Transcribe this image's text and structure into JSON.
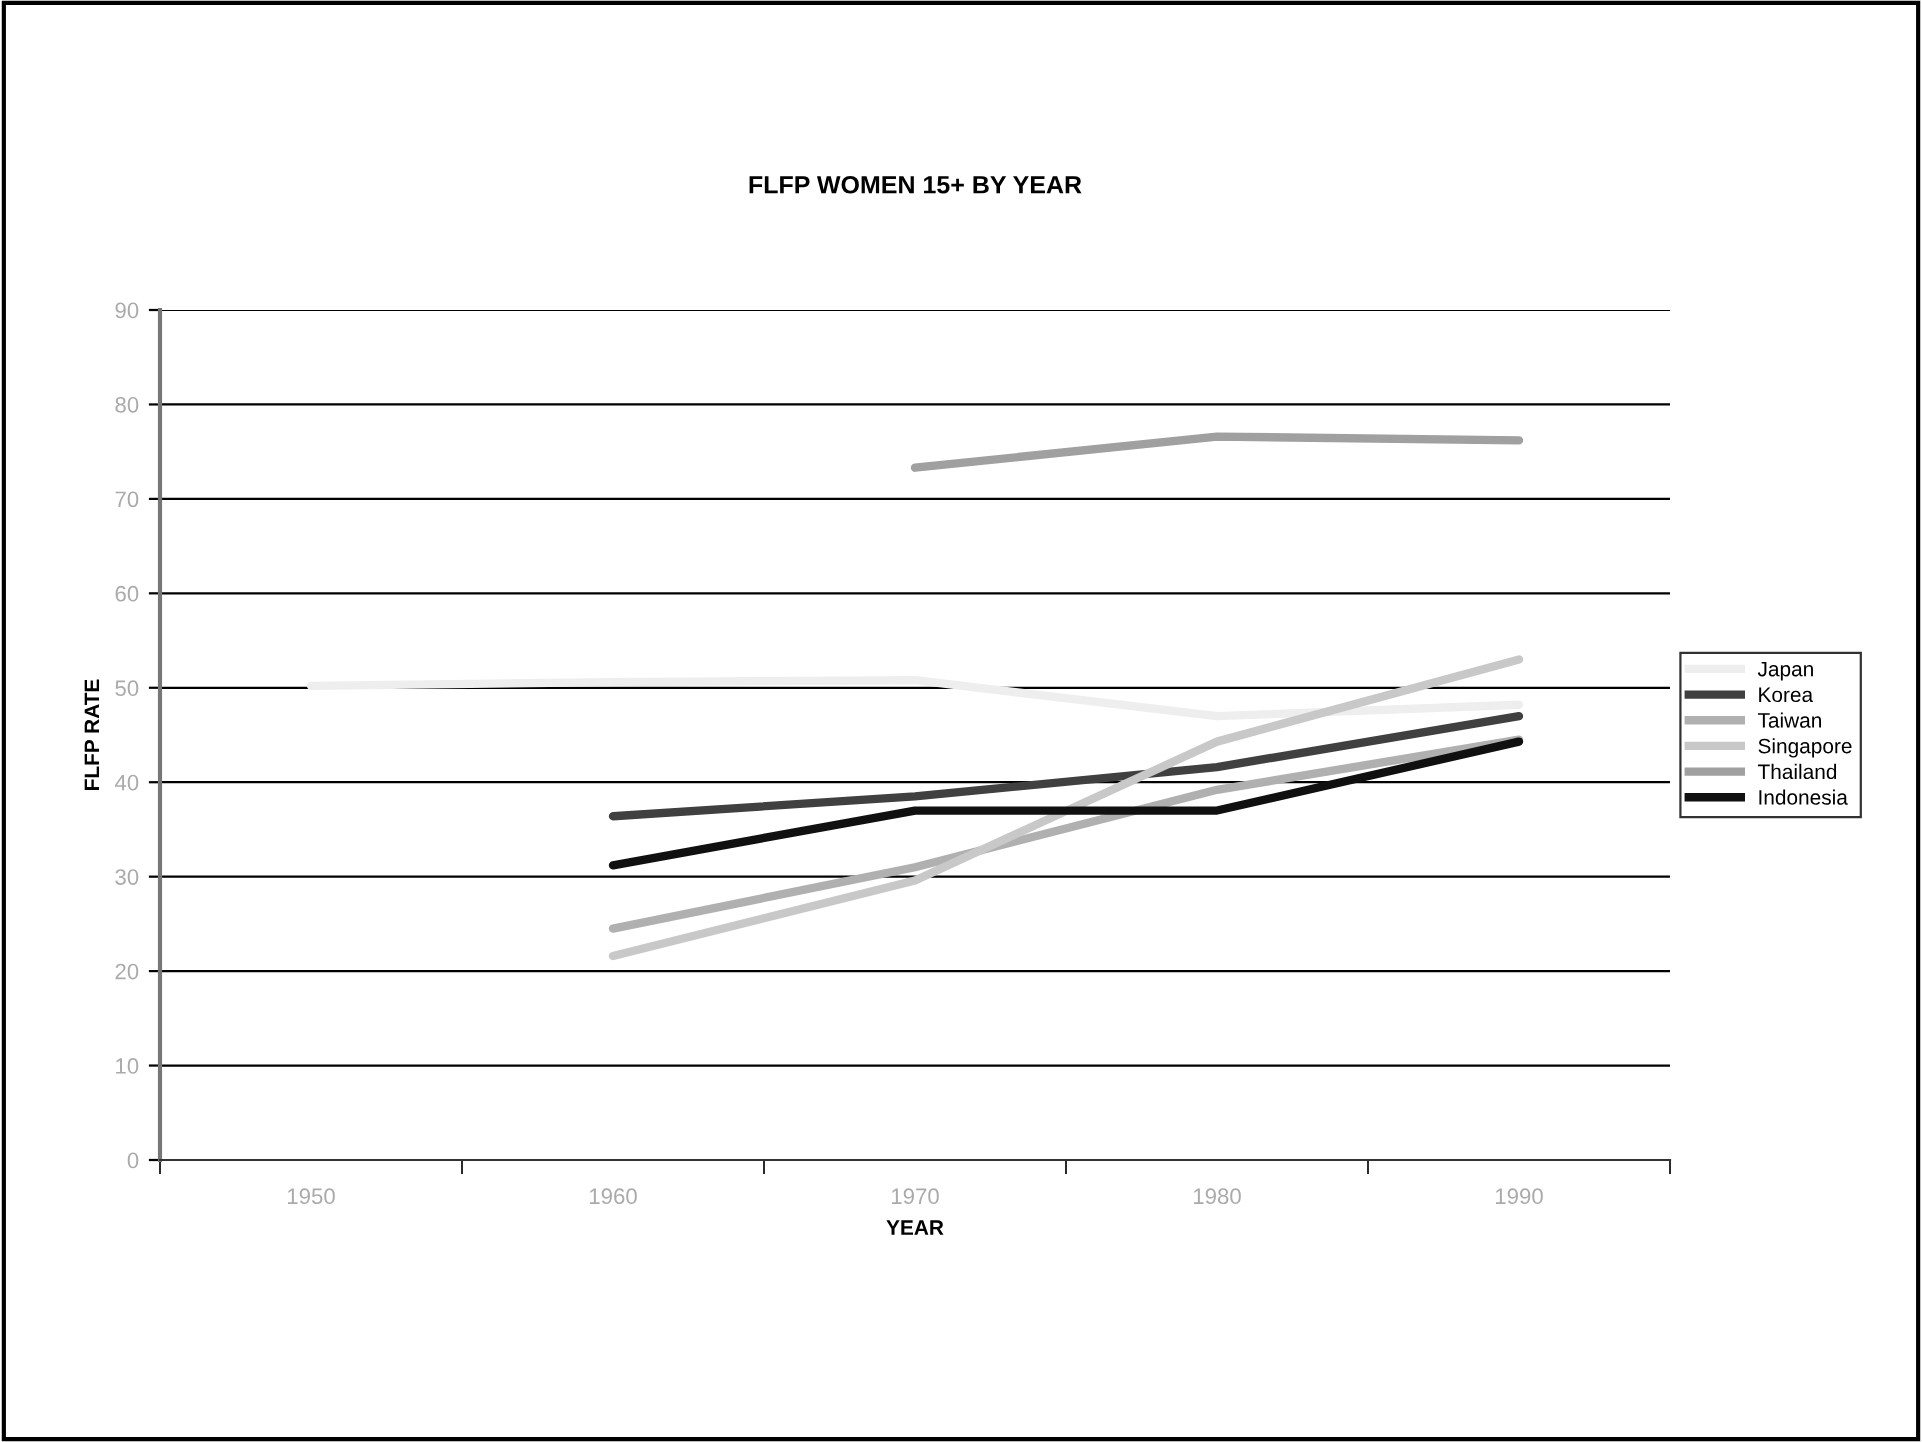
{
  "chart_data": {
    "type": "line",
    "title": "FLFP WOMEN 15+ BY YEAR",
    "xlabel": "YEAR",
    "ylabel": "FLFP RATE",
    "categories": [
      "1950",
      "1960",
      "1970",
      "1980",
      "1990"
    ],
    "series": [
      {
        "name": "Japan",
        "color": "#eeeeee",
        "values": [
          50.2,
          50.6,
          50.8,
          47.0,
          48.2
        ]
      },
      {
        "name": "Korea",
        "color": "#404040",
        "values": [
          null,
          36.4,
          38.5,
          41.6,
          47.0
        ]
      },
      {
        "name": "Taiwan",
        "color": "#b0b0b0",
        "values": [
          null,
          24.5,
          31.0,
          39.2,
          44.5
        ]
      },
      {
        "name": "Singapore",
        "color": "#c8c8c8",
        "values": [
          null,
          21.6,
          29.6,
          44.3,
          53.0
        ]
      },
      {
        "name": "Thailand",
        "color": "#a0a0a0",
        "values": [
          null,
          null,
          73.3,
          76.6,
          76.2
        ]
      },
      {
        "name": "Indonesia",
        "color": "#101010",
        "values": [
          null,
          31.2,
          37.0,
          37.0,
          44.3
        ]
      }
    ],
    "ylim": [
      0,
      90
    ],
    "yticks": [
      0,
      10,
      20,
      30,
      40,
      50,
      60,
      70,
      80,
      90
    ],
    "grid": "y",
    "legend": "right",
    "marker": "none",
    "line_style": "solid"
  }
}
